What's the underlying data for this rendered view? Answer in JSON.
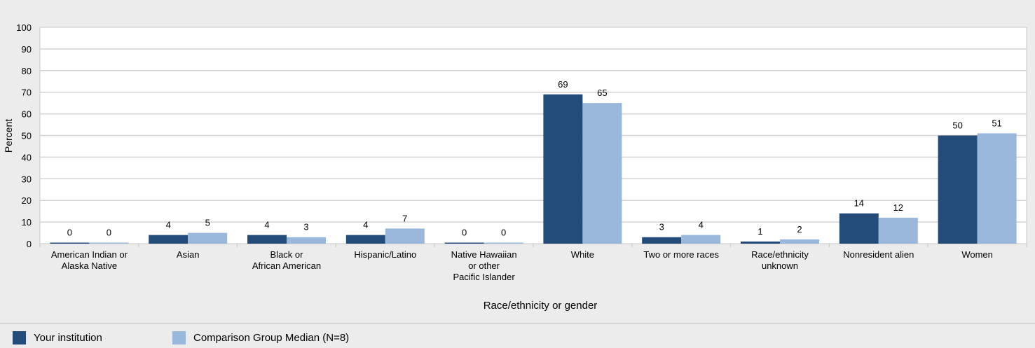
{
  "chart_data": {
    "type": "bar",
    "categories": [
      [
        "American Indian or",
        "Alaska Native"
      ],
      [
        "Asian"
      ],
      [
        "Black or",
        "African American"
      ],
      [
        "Hispanic/Latino"
      ],
      [
        "Native Hawaiian",
        "or other",
        "Pacific Islander"
      ],
      [
        "White"
      ],
      [
        "Two or more races"
      ],
      [
        "Race/ethnicity",
        "unknown"
      ],
      [
        "Nonresident alien"
      ],
      [
        "Women"
      ]
    ],
    "series": [
      {
        "name": "Your institution",
        "color": "#244c7a",
        "values": [
          0,
          4,
          4,
          4,
          0,
          69,
          3,
          1,
          14,
          50
        ]
      },
      {
        "name": "Comparison Group Median (N=8)",
        "color": "#9ab7dc",
        "values": [
          0,
          5,
          3,
          7,
          0,
          65,
          4,
          2,
          12,
          51
        ]
      }
    ],
    "title": "",
    "xlabel": "Race/ethnicity or gender",
    "ylabel": "Percent",
    "ylim": [
      0,
      100
    ],
    "yticks": [
      0,
      10,
      20,
      30,
      40,
      50,
      60,
      70,
      80,
      90,
      100
    ],
    "grid": true,
    "legend_position": "bottom-left"
  }
}
